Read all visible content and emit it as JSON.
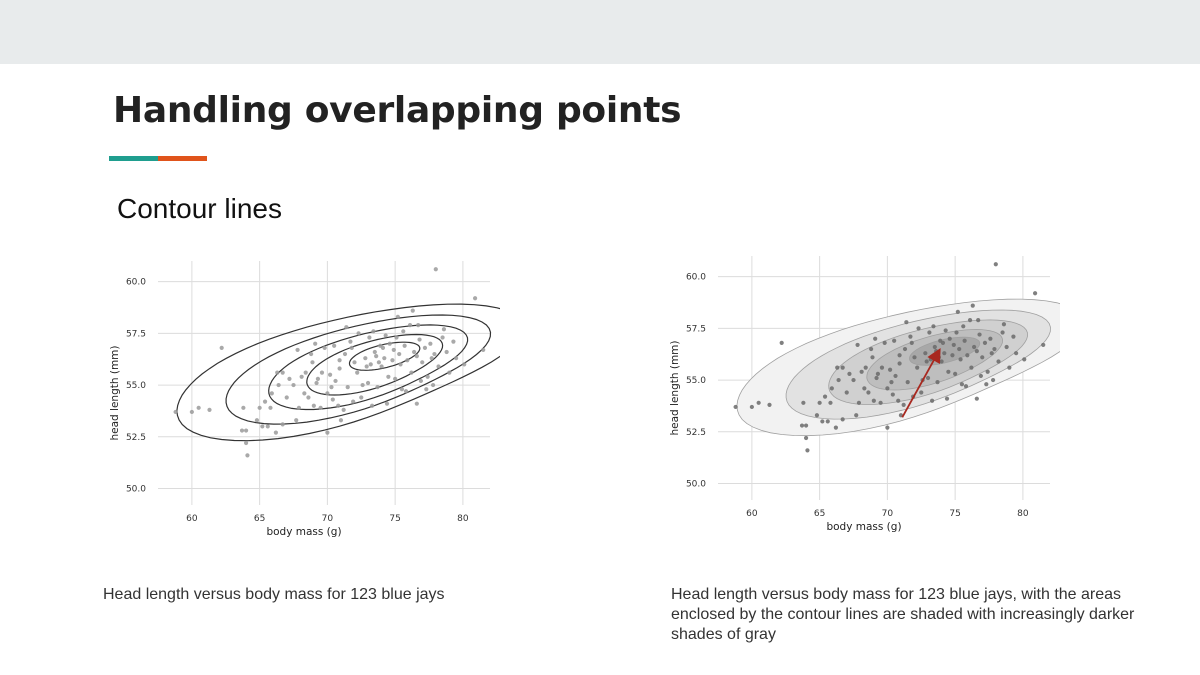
{
  "slide": {
    "title": "Handling overlapping points",
    "subtitle": "Contour lines",
    "accent_colors": [
      "#1f9e8f",
      "#e0541b"
    ]
  },
  "captions": {
    "left": "Head length versus body mass for 123 blue jays",
    "right": "Head length versus body mass for 123 blue jays, with the areas enclosed by the contour lines are shaded with increasingly darker shades of gray"
  },
  "chart_data": [
    {
      "type": "scatter",
      "xlabel": "body mass (g)",
      "ylabel": "head length (mm)",
      "xlim": [
        57.5,
        82
      ],
      "ylim": [
        49.2,
        61
      ],
      "x_ticks": [
        60,
        65,
        70,
        75,
        80
      ],
      "y_ticks": [
        50.0,
        52.5,
        55.0,
        57.5,
        60.0
      ],
      "y_tick_labels": [
        "50.0",
        "52.5",
        "55.0",
        "57.5",
        "60.0"
      ],
      "grid": true,
      "contours": "lines",
      "points": [
        [
          58.8,
          53.7
        ],
        [
          60.0,
          53.7
        ],
        [
          60.5,
          53.9
        ],
        [
          61.3,
          53.8
        ],
        [
          62.2,
          56.8
        ],
        [
          63.7,
          52.8
        ],
        [
          63.8,
          53.9
        ],
        [
          64.0,
          52.2
        ],
        [
          64.0,
          52.8
        ],
        [
          64.1,
          51.6
        ],
        [
          64.8,
          53.3
        ],
        [
          65.0,
          53.9
        ],
        [
          65.2,
          53.0
        ],
        [
          65.4,
          54.2
        ],
        [
          65.6,
          53.0
        ],
        [
          65.8,
          53.9
        ],
        [
          66.2,
          52.7
        ],
        [
          66.3,
          55.6
        ],
        [
          66.7,
          53.1
        ],
        [
          67.0,
          54.4
        ],
        [
          67.2,
          55.3
        ],
        [
          67.5,
          55.0
        ],
        [
          67.7,
          53.3
        ],
        [
          67.8,
          56.7
        ],
        [
          68.1,
          55.4
        ],
        [
          68.4,
          55.6
        ],
        [
          68.6,
          54.4
        ],
        [
          68.9,
          56.1
        ],
        [
          69.0,
          54.0
        ],
        [
          69.2,
          55.1
        ],
        [
          69.5,
          53.9
        ],
        [
          69.8,
          56.8
        ],
        [
          70.0,
          54.6
        ],
        [
          70.0,
          52.7
        ],
        [
          70.2,
          55.5
        ],
        [
          70.4,
          54.3
        ],
        [
          70.5,
          56.9
        ],
        [
          70.8,
          54.0
        ],
        [
          70.9,
          55.8
        ],
        [
          71.2,
          53.8
        ],
        [
          71.3,
          56.5
        ],
        [
          71.5,
          54.9
        ],
        [
          71.7,
          57.1
        ],
        [
          71.9,
          54.2
        ],
        [
          72.2,
          55.6
        ],
        [
          72.3,
          57.5
        ],
        [
          72.5,
          54.4
        ],
        [
          72.8,
          56.3
        ],
        [
          73.0,
          55.1
        ],
        [
          73.1,
          57.3
        ],
        [
          73.3,
          54.0
        ],
        [
          73.5,
          56.6
        ],
        [
          73.7,
          54.9
        ],
        [
          73.9,
          56.9
        ],
        [
          74.0,
          55.9
        ],
        [
          74.1,
          56.8
        ],
        [
          74.2,
          56.3
        ],
        [
          74.4,
          54.1
        ],
        [
          74.6,
          57.0
        ],
        [
          74.8,
          56.2
        ],
        [
          75.0,
          55.3
        ],
        [
          75.1,
          57.3
        ],
        [
          75.3,
          56.5
        ],
        [
          75.5,
          54.8
        ],
        [
          75.7,
          56.9
        ],
        [
          75.9,
          56.2
        ],
        [
          76.1,
          57.9
        ],
        [
          76.2,
          55.6
        ],
        [
          76.4,
          56.6
        ],
        [
          76.6,
          54.1
        ],
        [
          76.8,
          57.2
        ],
        [
          77.0,
          56.1
        ],
        [
          77.2,
          56.8
        ],
        [
          77.4,
          55.4
        ],
        [
          77.6,
          57.0
        ],
        [
          77.9,
          56.5
        ],
        [
          78.0,
          60.6
        ],
        [
          78.2,
          55.9
        ],
        [
          78.5,
          57.3
        ],
        [
          78.8,
          56.6
        ],
        [
          79.0,
          55.6
        ],
        [
          79.5,
          56.3
        ],
        [
          80.1,
          56.0
        ],
        [
          80.9,
          59.2
        ],
        [
          81.5,
          56.7
        ],
        [
          69.1,
          57.0
        ],
        [
          66.7,
          55.6
        ],
        [
          70.9,
          56.2
        ],
        [
          73.8,
          56.1
        ],
        [
          76.6,
          56.4
        ],
        [
          71.0,
          53.3
        ],
        [
          75.8,
          54.7
        ],
        [
          77.7,
          56.3
        ],
        [
          72.9,
          55.9
        ],
        [
          68.3,
          54.6
        ],
        [
          74.5,
          55.4
        ],
        [
          66.4,
          55.0
        ],
        [
          76.9,
          55.2
        ],
        [
          73.4,
          57.6
        ],
        [
          69.6,
          55.6
        ],
        [
          75.2,
          58.3
        ],
        [
          71.8,
          56.8
        ],
        [
          78.6,
          57.7
        ],
        [
          70.6,
          55.2
        ],
        [
          74.9,
          56.7
        ],
        [
          77.3,
          54.8
        ],
        [
          67.9,
          53.9
        ],
        [
          72.6,
          55.0
        ],
        [
          79.3,
          57.1
        ],
        [
          76.3,
          58.6
        ],
        [
          65.9,
          54.6
        ],
        [
          73.6,
          56.4
        ],
        [
          71.4,
          57.8
        ],
        [
          75.6,
          57.6
        ],
        [
          68.8,
          56.5
        ],
        [
          77.8,
          55.0
        ],
        [
          74.3,
          57.4
        ],
        [
          70.3,
          54.9
        ],
        [
          72.0,
          56.1
        ],
        [
          76.7,
          57.9
        ],
        [
          69.3,
          55.3
        ],
        [
          75.4,
          56.0
        ],
        [
          73.2,
          56.0
        ]
      ]
    },
    {
      "type": "scatter",
      "xlabel": "body mass (g)",
      "ylabel": "head length (mm)",
      "xlim": [
        57.5,
        82
      ],
      "ylim": [
        49.2,
        61
      ],
      "x_ticks": [
        60,
        65,
        70,
        75,
        80
      ],
      "y_ticks": [
        50.0,
        52.5,
        55.0,
        57.5,
        60.0
      ],
      "y_tick_labels": [
        "50.0",
        "52.5",
        "55.0",
        "57.5",
        "60.0"
      ],
      "grid": true,
      "contours": "filled",
      "fill_colors": [
        "#f2f2f2",
        "#e2e2e2",
        "#d0d0d0",
        "#bebebe",
        "#a8a8a8"
      ],
      "arrow_color": "#a8281f",
      "points": "same as chart 1"
    }
  ]
}
